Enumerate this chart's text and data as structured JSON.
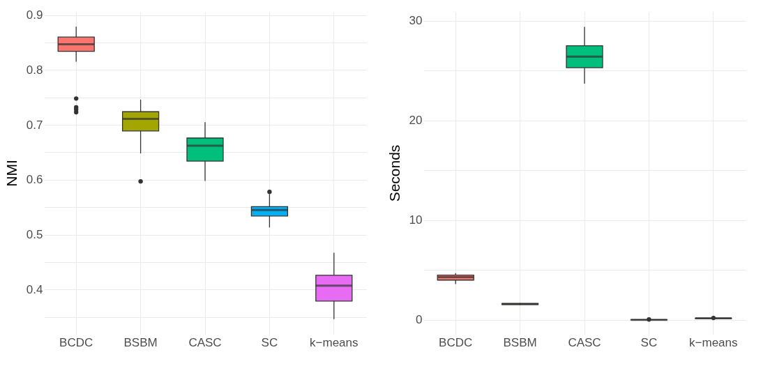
{
  "chart_data": [
    {
      "type": "box",
      "ylabel": "NMI",
      "categories": [
        "BCDC",
        "BSBM",
        "CASC",
        "SC",
        "k−means"
      ],
      "colors": [
        "#f8766d",
        "#a3a500",
        "#00bf7d",
        "#00b0f6",
        "#e76bf3"
      ],
      "boxes": [
        {
          "low": 0.815,
          "q1": 0.834,
          "median": 0.847,
          "q3": 0.86,
          "high": 0.879,
          "outliers": [
            0.748,
            0.732,
            0.728,
            0.723
          ]
        },
        {
          "low": 0.648,
          "q1": 0.689,
          "median": 0.711,
          "q3": 0.724,
          "high": 0.746,
          "outliers": [
            0.597
          ]
        },
        {
          "low": 0.598,
          "q1": 0.634,
          "median": 0.662,
          "q3": 0.676,
          "high": 0.705
        },
        {
          "low": 0.513,
          "q1": 0.534,
          "median": 0.545,
          "q3": 0.551,
          "high": 0.574,
          "outliers": [
            0.578
          ]
        },
        {
          "low": 0.346,
          "q1": 0.379,
          "median": 0.407,
          "q3": 0.426,
          "high": 0.467
        }
      ],
      "ylim": [
        0.319,
        0.906
      ],
      "yticks": [
        {
          "value": 0.35,
          "label": null
        },
        0.4,
        {
          "value": 0.45,
          "label": null
        },
        0.5,
        {
          "value": 0.55,
          "label": null
        },
        0.6,
        {
          "value": 0.65,
          "label": null
        },
        0.7,
        {
          "value": 0.75,
          "label": null
        },
        0.8,
        {
          "value": 0.85,
          "label": null
        },
        0.9
      ],
      "grid": true
    },
    {
      "type": "box",
      "ylabel": "Seconds",
      "categories": [
        "BCDC",
        "BSBM",
        "CASC",
        "SC",
        "k−means"
      ],
      "colors": [
        "#f8766d",
        "#a3a500",
        "#00bf7d",
        "#00b0f6",
        "#e76bf3"
      ],
      "boxes": [
        {
          "low": 3.6,
          "q1": 4.0,
          "median": 4.3,
          "q3": 4.5,
          "high": 4.7
        },
        {
          "low": 1.5,
          "q1": 1.55,
          "median": 1.6,
          "q3": 1.65,
          "high": 1.7
        },
        {
          "low": 23.7,
          "q1": 25.3,
          "median": 26.4,
          "q3": 27.5,
          "high": 29.4
        },
        {
          "low": 0.0,
          "q1": 0.01,
          "median": 0.02,
          "q3": 0.03,
          "high": 0.04,
          "outliers": [
            0.05
          ]
        },
        {
          "low": 0.13,
          "q1": 0.15,
          "median": 0.17,
          "q3": 0.18,
          "high": 0.19,
          "outliers": [
            0.2
          ]
        }
      ],
      "ylim": [
        -1.4,
        30.9
      ],
      "yticks": [
        0,
        {
          "value": 5,
          "label": null
        },
        10,
        {
          "value": 15,
          "label": null
        },
        20,
        {
          "value": 25,
          "label": null
        },
        30
      ],
      "grid": true
    }
  ]
}
